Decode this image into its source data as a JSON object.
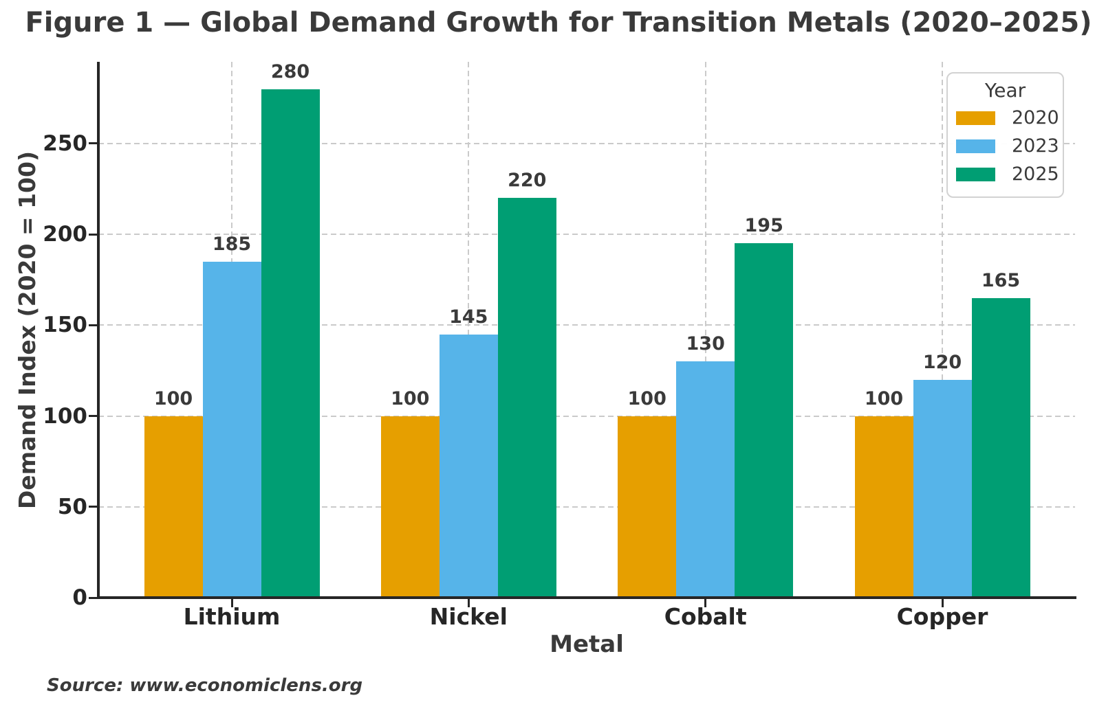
{
  "figure": {
    "title": "Figure 1 — Global Demand Growth for Transition Metals (2020–2025)",
    "source": "Source: www.economiclens.org"
  },
  "chart_data": {
    "type": "bar",
    "title": "Figure 1 — Global Demand Growth for Transition Metals (2020–2025)",
    "xlabel": "Metal",
    "ylabel": "Demand Index (2020 = 100)",
    "categories": [
      "Lithium",
      "Nickel",
      "Cobalt",
      "Copper"
    ],
    "series": [
      {
        "name": "2020",
        "color": "#E69F00",
        "values": [
          100,
          100,
          100,
          100
        ]
      },
      {
        "name": "2023",
        "color": "#56B4E9",
        "values": [
          185,
          145,
          130,
          120
        ]
      },
      {
        "name": "2025",
        "color": "#009E73",
        "values": [
          280,
          220,
          195,
          165
        ]
      }
    ],
    "yticks": [
      0,
      50,
      100,
      150,
      200,
      250
    ],
    "ylim": [
      0,
      295
    ],
    "grid": true,
    "grid_style": "dashed",
    "bar_value_labels": true,
    "legend_title": "Year",
    "legend_position": "upper right"
  },
  "style": {
    "grid_color": "#cacaca",
    "spine_color": "#262626",
    "text_color": "#3a3a3a",
    "background": "#ffffff"
  }
}
